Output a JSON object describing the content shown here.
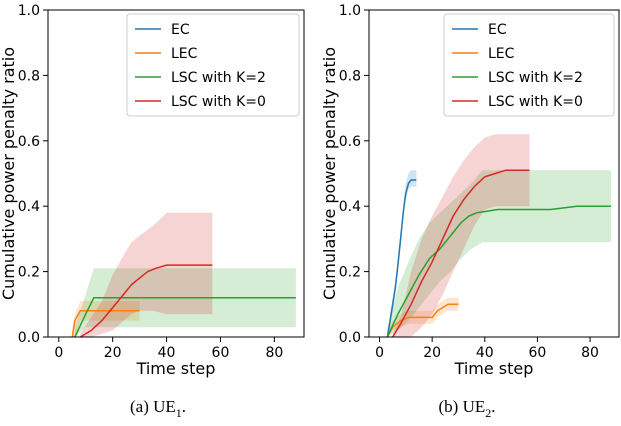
{
  "chart_data": [
    {
      "type": "line",
      "caption": "(a) UE",
      "caption_sub": "1",
      "caption_end": ".",
      "xlabel": "Time step",
      "ylabel": "Cumulative power penalty ratio",
      "xlim": [
        -4,
        91
      ],
      "ylim": [
        0,
        1.0
      ],
      "xticks": [
        0,
        20,
        40,
        60,
        80
      ],
      "yticks": [
        0.0,
        0.2,
        0.4,
        0.6,
        0.8,
        1.0
      ],
      "grid": false,
      "legend": "top-right",
      "series": [
        {
          "name": "EC",
          "color": "#1f77b4",
          "points": [],
          "band": []
        },
        {
          "name": "LEC",
          "color": "#ff7f0e",
          "points": [
            [
              5,
              0.0
            ],
            [
              6,
              0.05
            ],
            [
              8,
              0.08
            ],
            [
              30,
              0.08
            ]
          ],
          "band": [
            [
              5,
              0.0,
              0.03
            ],
            [
              6,
              0.0,
              0.07
            ],
            [
              8,
              0.05,
              0.11
            ],
            [
              30,
              0.05,
              0.11
            ]
          ]
        },
        {
          "name": "LSC with K=2",
          "color": "#2ca02c",
          "points": [
            [
              6,
              0.0
            ],
            [
              10,
              0.07
            ],
            [
              13,
              0.12
            ],
            [
              88,
              0.12
            ]
          ],
          "band": [
            [
              6,
              0.0,
              0.03
            ],
            [
              10,
              0.03,
              0.13
            ],
            [
              13,
              0.03,
              0.21
            ],
            [
              88,
              0.03,
              0.21
            ]
          ]
        },
        {
          "name": "LSC with K=0",
          "color": "#d62728",
          "points": [
            [
              8,
              0.0
            ],
            [
              12,
              0.02
            ],
            [
              16,
              0.05
            ],
            [
              20,
              0.09
            ],
            [
              24,
              0.13
            ],
            [
              27,
              0.16
            ],
            [
              30,
              0.18
            ],
            [
              33,
              0.2
            ],
            [
              36,
              0.21
            ],
            [
              40,
              0.22
            ],
            [
              57,
              0.22
            ]
          ],
          "band": [
            [
              8,
              0.0,
              0.01
            ],
            [
              12,
              0.0,
              0.06
            ],
            [
              16,
              0.01,
              0.11
            ],
            [
              20,
              0.02,
              0.19
            ],
            [
              24,
              0.05,
              0.25
            ],
            [
              27,
              0.07,
              0.29
            ],
            [
              30,
              0.08,
              0.31
            ],
            [
              35,
              0.08,
              0.34
            ],
            [
              40,
              0.07,
              0.38
            ],
            [
              57,
              0.07,
              0.38
            ]
          ]
        }
      ]
    },
    {
      "type": "line",
      "caption": "(b) UE",
      "caption_sub": "2",
      "caption_end": ".",
      "xlabel": "Time step",
      "ylabel": "Cumulative power penalty ratio",
      "xlim": [
        -4,
        91
      ],
      "ylim": [
        0,
        1.0
      ],
      "xticks": [
        0,
        20,
        40,
        60,
        80
      ],
      "yticks": [
        0.0,
        0.2,
        0.4,
        0.6,
        0.8,
        1.0
      ],
      "grid": false,
      "legend": "top-right",
      "series": [
        {
          "name": "EC",
          "color": "#1f77b4",
          "points": [
            [
              3,
              0.0
            ],
            [
              4,
              0.05
            ],
            [
              5,
              0.1
            ],
            [
              6,
              0.15
            ],
            [
              7,
              0.22
            ],
            [
              8,
              0.3
            ],
            [
              9,
              0.38
            ],
            [
              10,
              0.44
            ],
            [
              11,
              0.47
            ],
            [
              12,
              0.48
            ],
            [
              14,
              0.48
            ]
          ],
          "band": [
            [
              3,
              0.0,
              0.01
            ],
            [
              4,
              0.03,
              0.07
            ],
            [
              5,
              0.08,
              0.12
            ],
            [
              6,
              0.13,
              0.17
            ],
            [
              7,
              0.2,
              0.24
            ],
            [
              8,
              0.28,
              0.32
            ],
            [
              9,
              0.36,
              0.4
            ],
            [
              10,
              0.42,
              0.47
            ],
            [
              11,
              0.45,
              0.5
            ],
            [
              12,
              0.46,
              0.51
            ],
            [
              14,
              0.46,
              0.51
            ]
          ]
        },
        {
          "name": "LEC",
          "color": "#ff7f0e",
          "points": [
            [
              3,
              0.0
            ],
            [
              5,
              0.03
            ],
            [
              8,
              0.05
            ],
            [
              11,
              0.06
            ],
            [
              20,
              0.06
            ],
            [
              22,
              0.08
            ],
            [
              24,
              0.09
            ],
            [
              26,
              0.1
            ],
            [
              30,
              0.1
            ]
          ],
          "band": [
            [
              3,
              0.0,
              0.01
            ],
            [
              5,
              0.02,
              0.05
            ],
            [
              8,
              0.03,
              0.07
            ],
            [
              11,
              0.04,
              0.08
            ],
            [
              20,
              0.04,
              0.08
            ],
            [
              22,
              0.06,
              0.1
            ],
            [
              24,
              0.07,
              0.11
            ],
            [
              26,
              0.08,
              0.12
            ],
            [
              30,
              0.08,
              0.12
            ]
          ]
        },
        {
          "name": "LSC with K=2",
          "color": "#2ca02c",
          "points": [
            [
              3,
              0.0
            ],
            [
              7,
              0.07
            ],
            [
              11,
              0.13
            ],
            [
              15,
              0.19
            ],
            [
              19,
              0.24
            ],
            [
              23,
              0.27
            ],
            [
              27,
              0.31
            ],
            [
              31,
              0.35
            ],
            [
              34,
              0.37
            ],
            [
              37,
              0.38
            ],
            [
              45,
              0.39
            ],
            [
              55,
              0.39
            ],
            [
              65,
              0.39
            ],
            [
              75,
              0.4
            ],
            [
              88,
              0.4
            ]
          ],
          "band": [
            [
              3,
              0.0,
              0.03
            ],
            [
              7,
              0.02,
              0.15
            ],
            [
              11,
              0.05,
              0.23
            ],
            [
              15,
              0.09,
              0.3
            ],
            [
              19,
              0.13,
              0.35
            ],
            [
              23,
              0.17,
              0.38
            ],
            [
              27,
              0.2,
              0.41
            ],
            [
              31,
              0.24,
              0.44
            ],
            [
              35,
              0.27,
              0.47
            ],
            [
              39,
              0.29,
              0.51
            ],
            [
              45,
              0.29,
              0.51
            ],
            [
              88,
              0.29,
              0.51
            ]
          ]
        },
        {
          "name": "LSC with K=0",
          "color": "#d62728",
          "points": [
            [
              5,
              0.0
            ],
            [
              8,
              0.04
            ],
            [
              12,
              0.1
            ],
            [
              16,
              0.17
            ],
            [
              20,
              0.23
            ],
            [
              24,
              0.3
            ],
            [
              28,
              0.37
            ],
            [
              32,
              0.42
            ],
            [
              36,
              0.46
            ],
            [
              40,
              0.49
            ],
            [
              44,
              0.5
            ],
            [
              48,
              0.51
            ],
            [
              57,
              0.51
            ]
          ],
          "band": [
            [
              5,
              0.0,
              0.01
            ],
            [
              8,
              0.0,
              0.06
            ],
            [
              12,
              0.0,
              0.2
            ],
            [
              16,
              0.03,
              0.3
            ],
            [
              20,
              0.07,
              0.37
            ],
            [
              24,
              0.13,
              0.43
            ],
            [
              28,
              0.2,
              0.49
            ],
            [
              32,
              0.27,
              0.54
            ],
            [
              36,
              0.34,
              0.58
            ],
            [
              40,
              0.39,
              0.61
            ],
            [
              44,
              0.4,
              0.62
            ],
            [
              57,
              0.4,
              0.62
            ]
          ]
        }
      ]
    }
  ]
}
